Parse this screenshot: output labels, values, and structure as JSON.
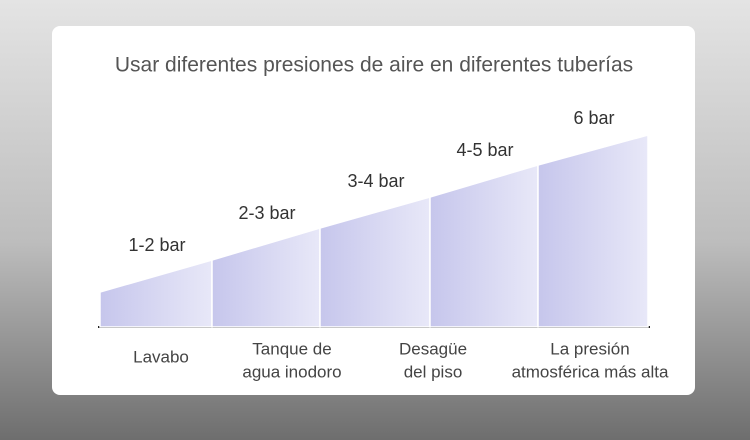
{
  "title": "Usar diferentes presiones de aire en diferentes tuberías",
  "steps": [
    {
      "label": "1-2 bar"
    },
    {
      "label": "2-3 bar"
    },
    {
      "label": "3-4 bar"
    },
    {
      "label": "4-5 bar"
    },
    {
      "label": "6 bar"
    }
  ],
  "captions": [
    {
      "lines": [
        "Lavabo"
      ]
    },
    {
      "lines": [
        "Tanque de",
        "agua inodoro"
      ]
    },
    {
      "lines": [
        "Desagüe",
        "del piso"
      ]
    },
    {
      "lines": [
        "La presión",
        "atmosférica más alta"
      ]
    }
  ]
}
